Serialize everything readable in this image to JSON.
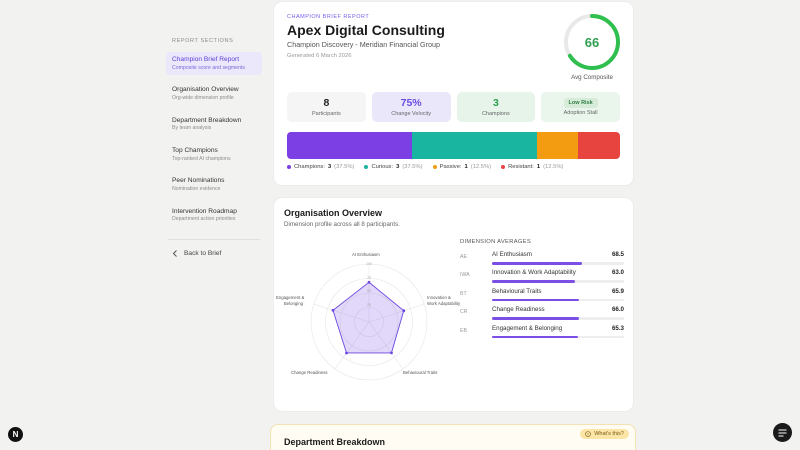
{
  "sidebar": {
    "heading": "REPORT SECTIONS",
    "items": [
      {
        "title": "Champion Brief Report",
        "sub": "Composite score and segments"
      },
      {
        "title": "Organisation Overview",
        "sub": "Org-wide dimension profile"
      },
      {
        "title": "Department Breakdown",
        "sub": "By team analysis"
      },
      {
        "title": "Top Champions",
        "sub": "Top-ranked AI champions"
      },
      {
        "title": "Peer Nominations",
        "sub": "Nomination evidence"
      },
      {
        "title": "Intervention Roadmap",
        "sub": "Department action priorities"
      }
    ],
    "back_label": "Back to Brief"
  },
  "brief": {
    "eyebrow": "CHAMPION BRIEF REPORT",
    "company": "Apex Digital Consulting",
    "subtitle": "Champion Discovery - Meridian Financial Group",
    "generated": "Generated 6 March 2026",
    "score": "66",
    "score_fraction": 0.66,
    "score_label": "Avg Composite",
    "stats": {
      "participants": {
        "value": "8",
        "label": "Participants"
      },
      "velocity": {
        "value": "75%",
        "label": "Change Velocity"
      },
      "champions": {
        "value": "3",
        "label": "Champions"
      },
      "stall": {
        "value": "Low Risk",
        "label": "Adoption Stall"
      }
    },
    "segments": [
      {
        "name": "Champions",
        "count": "3",
        "pct": "(37.5%)",
        "share": 37.5,
        "color": "#7b3fe4"
      },
      {
        "name": "Curious",
        "count": "3",
        "pct": "(37.5%)",
        "share": 37.5,
        "color": "#19b5a0"
      },
      {
        "name": "Passive",
        "count": "1",
        "pct": "(12.5%)",
        "share": 12.5,
        "color": "#f39c12"
      },
      {
        "name": "Resistant",
        "count": "1",
        "pct": "(12.5%)",
        "share": 12.5,
        "color": "#e8443f"
      }
    ]
  },
  "overview": {
    "title": "Organisation Overview",
    "subtitle": "Dimension profile across all 8 participants.",
    "dim_heading": "DIMENSION AVERAGES",
    "abbreviations": [
      "AE",
      "IWA",
      "BT",
      "CR",
      "EB"
    ],
    "dimensions": [
      {
        "name": "AI Enthusiasm",
        "score": "68.5",
        "value": 68.5
      },
      {
        "name": "Innovation & Work Adaptability",
        "score": "63.0",
        "value": 63.0
      },
      {
        "name": "Behavioural Traits",
        "score": "65.9",
        "value": 65.9
      },
      {
        "name": "Change Readiness",
        "score": "66.0",
        "value": 66.0
      },
      {
        "name": "Engagement & Belonging",
        "score": "65.3",
        "value": 65.3
      }
    ],
    "radar_labels": {
      "top": "AI Enthusiasm",
      "right_top": "Innovation &\nWork Adaptability",
      "right_bottom": "Behavioural Traits",
      "left_bottom": "Change Readiness",
      "left_top": "Engagement &\nBelonging"
    },
    "radar_ticks": [
      "100",
      "75",
      "50",
      "25"
    ]
  },
  "department": {
    "title": "Department Breakdown",
    "whats_this": "What's this?"
  },
  "app": {
    "logo_letter": "N"
  }
}
